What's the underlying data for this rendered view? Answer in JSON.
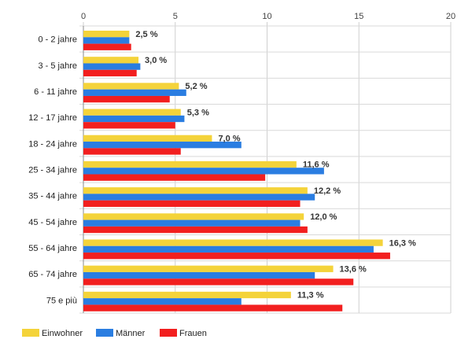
{
  "chart_data": {
    "type": "bar",
    "orientation": "horizontal",
    "categories": [
      "0 - 2 jahre",
      "3 - 5 jahre",
      "6 - 11 jahre",
      "12 - 17 jahre",
      "18 - 24 jahre",
      "25 - 34 jahre",
      "35 - 44 jahre",
      "45 - 54 jahre",
      "55 - 64 jahre",
      "65 - 74 jahre",
      "75 e più"
    ],
    "series": [
      {
        "name": "Einwohner",
        "color": "#f4d33a",
        "values": [
          2.5,
          3.0,
          5.2,
          5.3,
          7.0,
          11.6,
          12.2,
          12.0,
          16.3,
          13.6,
          11.3
        ]
      },
      {
        "name": "Männer",
        "color": "#2a7de1",
        "values": [
          2.5,
          3.1,
          5.6,
          5.5,
          8.6,
          13.1,
          12.6,
          11.8,
          15.8,
          12.6,
          8.6
        ]
      },
      {
        "name": "Frauen",
        "color": "#f21f1f",
        "values": [
          2.6,
          2.9,
          4.7,
          5.0,
          5.3,
          9.9,
          11.8,
          12.2,
          16.7,
          14.7,
          14.1
        ]
      }
    ],
    "data_labels": [
      "2,5 %",
      "3,0 %",
      "5,2 %",
      "5,3 %",
      "7,0 %",
      "11,6 %",
      "12,2 %",
      "12,0 %",
      "16,3 %",
      "13,6 %",
      "11,3 %"
    ],
    "xlim": [
      0,
      20
    ],
    "xticks": [
      0,
      5,
      10,
      15,
      20
    ],
    "xtick_labels": [
      "0",
      "5",
      "10",
      "15",
      "20"
    ],
    "xaxis_position": "top",
    "grid": true,
    "legend_position": "bottom-left"
  }
}
